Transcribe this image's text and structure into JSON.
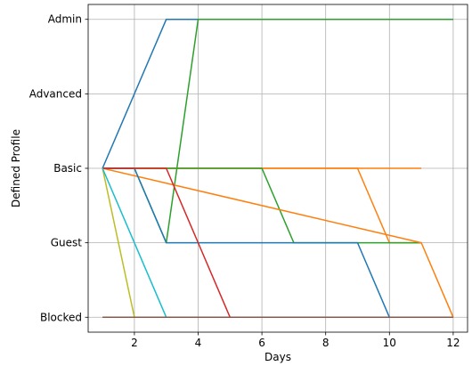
{
  "chart_data": {
    "type": "line",
    "title": "",
    "xlabel": "Days",
    "ylabel": "Defined Profile",
    "xlim": [
      0.55,
      12.45
    ],
    "ylim": [
      -0.2,
      4.2
    ],
    "grid": true,
    "x_ticks": [
      2,
      4,
      6,
      8,
      10,
      12
    ],
    "x_tick_labels": [
      "2",
      "4",
      "6",
      "8",
      "10",
      "12"
    ],
    "y_categories": [
      "Blocked",
      "Guest",
      "Basic",
      "Advanced",
      "Admin"
    ],
    "series": [
      {
        "color": "#1f77b4",
        "x": [
          1,
          2,
          3,
          12
        ],
        "y": [
          "Basic",
          "Advanced",
          "Admin",
          "Admin"
        ]
      },
      {
        "color": "#2ca02c",
        "x": [
          1,
          2,
          3,
          4,
          12
        ],
        "y": [
          "Basic",
          "Basic",
          "Guest",
          "Admin",
          "Admin"
        ]
      },
      {
        "color": "#ff7f0e",
        "x": [
          1,
          2,
          9,
          10,
          11
        ],
        "y": [
          "Basic",
          "Basic",
          "Basic",
          "Guest",
          "Guest"
        ]
      },
      {
        "color": "#ff7f0e",
        "x": [
          1,
          9,
          11
        ],
        "y": [
          "Basic",
          "Basic",
          "Basic"
        ]
      },
      {
        "color": "#2ca02c",
        "x": [
          1,
          6,
          7,
          11
        ],
        "y": [
          "Basic",
          "Basic",
          "Guest",
          "Guest"
        ]
      },
      {
        "color": "#ff7f0e",
        "x": [
          1,
          11,
          12
        ],
        "y": [
          "Basic",
          "Guest",
          "Blocked"
        ]
      },
      {
        "color": "#1f77b4",
        "x": [
          1,
          2,
          3,
          9,
          10
        ],
        "y": [
          "Basic",
          "Basic",
          "Guest",
          "Guest",
          "Blocked"
        ]
      },
      {
        "color": "#d62728",
        "x": [
          1,
          3,
          4,
          5,
          12
        ],
        "y": [
          "Basic",
          "Basic",
          "Guest",
          "Blocked",
          "Blocked"
        ]
      },
      {
        "color": "#bcbd22",
        "x": [
          1,
          2,
          12
        ],
        "y": [
          "Basic",
          "Blocked",
          "Blocked"
        ]
      },
      {
        "color": "#17becf",
        "x": [
          1,
          3,
          11
        ],
        "y": [
          "Basic",
          "Blocked",
          "Blocked"
        ]
      },
      {
        "color": "#8c564b",
        "x": [
          1,
          12
        ],
        "y": [
          "Blocked",
          "Blocked"
        ]
      }
    ]
  }
}
